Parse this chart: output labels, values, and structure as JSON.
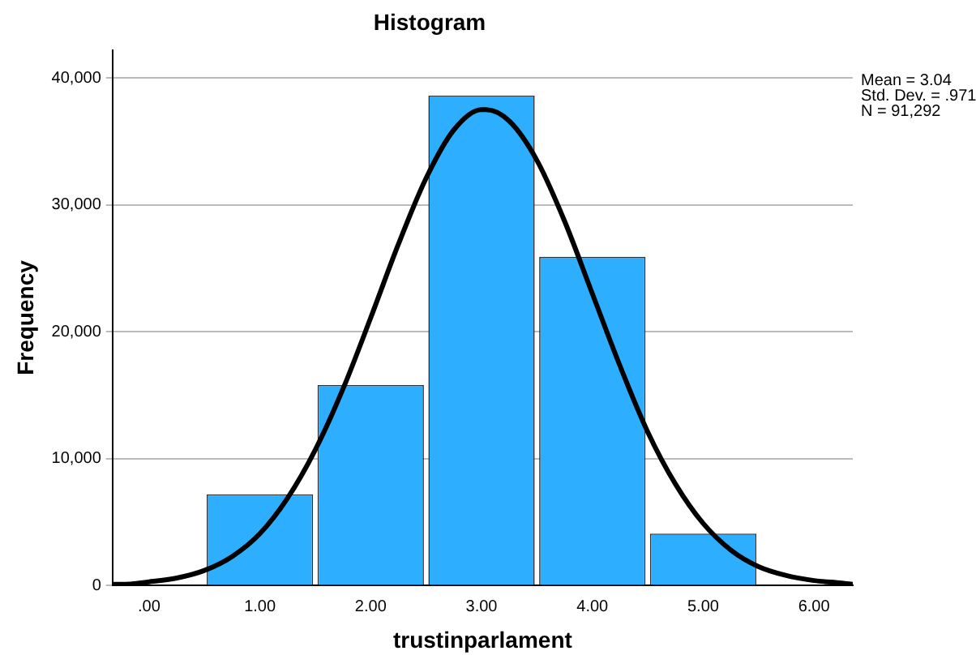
{
  "chart_data": {
    "type": "histogram",
    "title": "Histogram",
    "xlabel": "trustinparlament",
    "ylabel": "Frequency",
    "bins": [
      0.5,
      1.5,
      2.5,
      3.5,
      4.5,
      5.5
    ],
    "values": [
      7200,
      15800,
      38600,
      25900,
      4100
    ],
    "color": "#2eaefe",
    "series": [
      {
        "type": "line",
        "color": "#000000",
        "x": [
          -0.33,
          -0.25,
          0,
          0.25,
          0.5,
          0.75,
          1,
          1.25,
          1.5,
          1.75,
          2,
          2.25,
          2.5,
          2.75,
          3,
          3.04,
          3.25,
          3.5,
          3.75,
          4,
          4.25,
          4.5,
          4.75,
          5,
          5.25,
          5.5,
          5.75,
          6,
          6.25,
          6.35
        ],
        "values": [
          100,
          100,
          300,
          600,
          1200,
          2300,
          4100,
          6900,
          10700,
          15500,
          21100,
          26900,
          32100,
          35900,
          37500,
          37500,
          36600,
          33500,
          28700,
          23000,
          17300,
          12100,
          8000,
          4900,
          2800,
          1500,
          800,
          400,
          200,
          100
        ]
      }
    ],
    "xlim": [
      -0.33,
      6.35
    ],
    "xticks": [
      {
        "value": 0,
        "label": ".00"
      },
      {
        "value": 1,
        "label": "1.00"
      },
      {
        "value": 2,
        "label": "2.00"
      },
      {
        "value": 3,
        "label": "3.00"
      },
      {
        "value": 4,
        "label": "4.00"
      },
      {
        "value": 5,
        "label": "5.00"
      },
      {
        "value": 6,
        "label": "6.00"
      }
    ],
    "ylim": [
      0,
      42200
    ],
    "yticks": [
      {
        "value": 0,
        "label": "0"
      },
      {
        "value": 10000,
        "label": "10,000"
      },
      {
        "value": 20000,
        "label": "20,000"
      },
      {
        "value": 30000,
        "label": "30,000"
      },
      {
        "value": 40000,
        "label": "40,000"
      }
    ],
    "annotations": [
      "Mean = 3.04",
      "Std. Dev. = .971",
      "N = 91,292"
    ],
    "grid": "y",
    "legend": false,
    "marker": "none",
    "line_style": "solid"
  }
}
